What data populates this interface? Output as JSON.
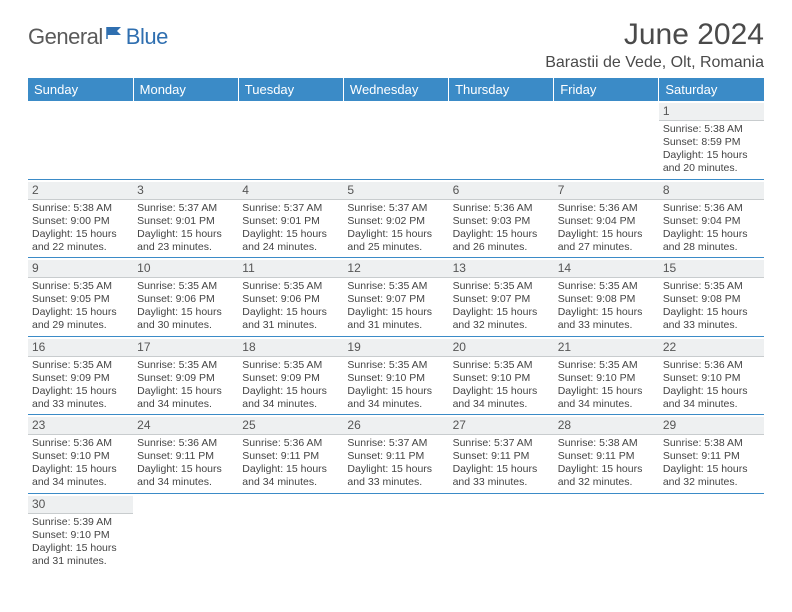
{
  "logo": {
    "word1": "General",
    "word2": "Blue"
  },
  "title": "June 2024",
  "location": "Barastii de Vede, Olt, Romania",
  "colors": {
    "header_bg": "#3b8bc7",
    "header_text": "#ffffff",
    "grid_line": "#3b8bc7",
    "daynum_bg": "#eef0f1",
    "daynum_border": "#c8ccce",
    "body_text": "#444444",
    "logo_gray": "#5a5a5a",
    "logo_blue": "#2f6fb0",
    "background": "#ffffff"
  },
  "typography": {
    "title_fontsize": 30,
    "location_fontsize": 16,
    "dayheader_fontsize": 13,
    "daynum_fontsize": 12,
    "cell_fontsize": 10.5,
    "logo_fontsize": 22
  },
  "day_headers": [
    "Sunday",
    "Monday",
    "Tuesday",
    "Wednesday",
    "Thursday",
    "Friday",
    "Saturday"
  ],
  "weeks": [
    [
      null,
      null,
      null,
      null,
      null,
      null,
      {
        "n": "1",
        "sr": "5:38 AM",
        "ss": "8:59 PM",
        "dh": "15",
        "dm": "20"
      }
    ],
    [
      {
        "n": "2",
        "sr": "5:38 AM",
        "ss": "9:00 PM",
        "dh": "15",
        "dm": "22"
      },
      {
        "n": "3",
        "sr": "5:37 AM",
        "ss": "9:01 PM",
        "dh": "15",
        "dm": "23"
      },
      {
        "n": "4",
        "sr": "5:37 AM",
        "ss": "9:01 PM",
        "dh": "15",
        "dm": "24"
      },
      {
        "n": "5",
        "sr": "5:37 AM",
        "ss": "9:02 PM",
        "dh": "15",
        "dm": "25"
      },
      {
        "n": "6",
        "sr": "5:36 AM",
        "ss": "9:03 PM",
        "dh": "15",
        "dm": "26"
      },
      {
        "n": "7",
        "sr": "5:36 AM",
        "ss": "9:04 PM",
        "dh": "15",
        "dm": "27"
      },
      {
        "n": "8",
        "sr": "5:36 AM",
        "ss": "9:04 PM",
        "dh": "15",
        "dm": "28"
      }
    ],
    [
      {
        "n": "9",
        "sr": "5:35 AM",
        "ss": "9:05 PM",
        "dh": "15",
        "dm": "29"
      },
      {
        "n": "10",
        "sr": "5:35 AM",
        "ss": "9:06 PM",
        "dh": "15",
        "dm": "30"
      },
      {
        "n": "11",
        "sr": "5:35 AM",
        "ss": "9:06 PM",
        "dh": "15",
        "dm": "31"
      },
      {
        "n": "12",
        "sr": "5:35 AM",
        "ss": "9:07 PM",
        "dh": "15",
        "dm": "31"
      },
      {
        "n": "13",
        "sr": "5:35 AM",
        "ss": "9:07 PM",
        "dh": "15",
        "dm": "32"
      },
      {
        "n": "14",
        "sr": "5:35 AM",
        "ss": "9:08 PM",
        "dh": "15",
        "dm": "33"
      },
      {
        "n": "15",
        "sr": "5:35 AM",
        "ss": "9:08 PM",
        "dh": "15",
        "dm": "33"
      }
    ],
    [
      {
        "n": "16",
        "sr": "5:35 AM",
        "ss": "9:09 PM",
        "dh": "15",
        "dm": "33"
      },
      {
        "n": "17",
        "sr": "5:35 AM",
        "ss": "9:09 PM",
        "dh": "15",
        "dm": "34"
      },
      {
        "n": "18",
        "sr": "5:35 AM",
        "ss": "9:09 PM",
        "dh": "15",
        "dm": "34"
      },
      {
        "n": "19",
        "sr": "5:35 AM",
        "ss": "9:10 PM",
        "dh": "15",
        "dm": "34"
      },
      {
        "n": "20",
        "sr": "5:35 AM",
        "ss": "9:10 PM",
        "dh": "15",
        "dm": "34"
      },
      {
        "n": "21",
        "sr": "5:35 AM",
        "ss": "9:10 PM",
        "dh": "15",
        "dm": "34"
      },
      {
        "n": "22",
        "sr": "5:36 AM",
        "ss": "9:10 PM",
        "dh": "15",
        "dm": "34"
      }
    ],
    [
      {
        "n": "23",
        "sr": "5:36 AM",
        "ss": "9:10 PM",
        "dh": "15",
        "dm": "34"
      },
      {
        "n": "24",
        "sr": "5:36 AM",
        "ss": "9:11 PM",
        "dh": "15",
        "dm": "34"
      },
      {
        "n": "25",
        "sr": "5:36 AM",
        "ss": "9:11 PM",
        "dh": "15",
        "dm": "34"
      },
      {
        "n": "26",
        "sr": "5:37 AM",
        "ss": "9:11 PM",
        "dh": "15",
        "dm": "33"
      },
      {
        "n": "27",
        "sr": "5:37 AM",
        "ss": "9:11 PM",
        "dh": "15",
        "dm": "33"
      },
      {
        "n": "28",
        "sr": "5:38 AM",
        "ss": "9:11 PM",
        "dh": "15",
        "dm": "32"
      },
      {
        "n": "29",
        "sr": "5:38 AM",
        "ss": "9:11 PM",
        "dh": "15",
        "dm": "32"
      }
    ],
    [
      {
        "n": "30",
        "sr": "5:39 AM",
        "ss": "9:10 PM",
        "dh": "15",
        "dm": "31"
      },
      null,
      null,
      null,
      null,
      null,
      null
    ]
  ],
  "labels": {
    "sunrise": "Sunrise:",
    "sunset": "Sunset:",
    "daylight_prefix": "Daylight:",
    "hours_word": "hours",
    "and_word": "and",
    "minutes_word": "minutes."
  }
}
